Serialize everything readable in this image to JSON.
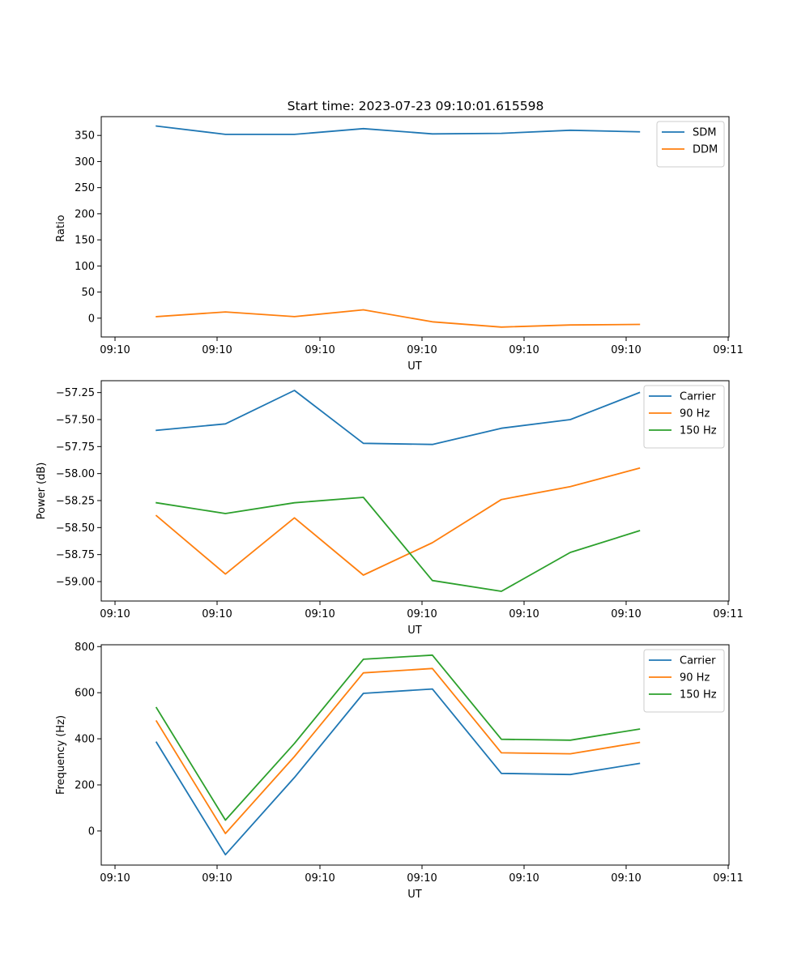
{
  "chart_data": [
    {
      "type": "line",
      "title": "Start time: 2023-07-23 09:10:01.615598",
      "xlabel": "UT",
      "ylabel": "Ratio",
      "x_tick_labels": [
        "09:10",
        "09:10",
        "09:10",
        "09:10",
        "09:10",
        "09:10",
        "09:11"
      ],
      "x": [
        1,
        2,
        3,
        4,
        5,
        6,
        7,
        8
      ],
      "xlim": [
        0.2,
        9.3
      ],
      "ylim": [
        -36,
        386
      ],
      "y_ticks": [
        0,
        50,
        100,
        150,
        200,
        250,
        300,
        350
      ],
      "y_tick_labels": [
        "0",
        "50",
        "100",
        "150",
        "200",
        "250",
        "300",
        "350"
      ],
      "legend_position": "top-right",
      "series": [
        {
          "name": "SDM",
          "color": "#1f77b4",
          "values": [
            368,
            352,
            352,
            363,
            353,
            354,
            360,
            357
          ]
        },
        {
          "name": "DDM",
          "color": "#ff7f0e",
          "values": [
            3,
            12,
            3,
            16,
            -7,
            -17,
            -13,
            -12
          ]
        }
      ]
    },
    {
      "type": "line",
      "title": "",
      "xlabel": "UT",
      "ylabel": "Power (dB)",
      "x_tick_labels": [
        "09:10",
        "09:10",
        "09:10",
        "09:10",
        "09:10",
        "09:10",
        "09:11"
      ],
      "x": [
        1,
        2,
        3,
        4,
        5,
        6,
        7,
        8
      ],
      "xlim": [
        0.2,
        9.3
      ],
      "ylim": [
        -59.18,
        -57.14
      ],
      "y_ticks": [
        -59.0,
        -58.75,
        -58.5,
        -58.25,
        -58.0,
        -57.75,
        -57.5,
        -57.25
      ],
      "y_tick_labels": [
        "−59.00",
        "−58.75",
        "−58.50",
        "−58.25",
        "−58.00",
        "−57.75",
        "−57.50",
        "−57.25"
      ],
      "legend_position": "top-right",
      "series": [
        {
          "name": "Carrier",
          "color": "#1f77b4",
          "values": [
            -57.6,
            -57.54,
            -57.23,
            -57.72,
            -57.73,
            -57.58,
            -57.5,
            -57.25
          ]
        },
        {
          "name": "90 Hz",
          "color": "#ff7f0e",
          "values": [
            -58.39,
            -58.93,
            -58.41,
            -58.94,
            -58.64,
            -58.24,
            -58.12,
            -57.95
          ]
        },
        {
          "name": "150 Hz",
          "color": "#2ca02c",
          "values": [
            -58.27,
            -58.37,
            -58.27,
            -58.22,
            -58.99,
            -59.09,
            -58.73,
            -58.53
          ]
        }
      ]
    },
    {
      "type": "line",
      "title": "",
      "xlabel": "UT",
      "ylabel": "Frequency (Hz)",
      "x_tick_labels": [
        "09:10",
        "09:10",
        "09:10",
        "09:10",
        "09:10",
        "09:10",
        "09:11"
      ],
      "x": [
        1,
        2,
        3,
        4,
        5,
        6,
        7,
        8
      ],
      "xlim": [
        0.2,
        9.3
      ],
      "ylim": [
        -148,
        808
      ],
      "y_ticks": [
        0,
        200,
        400,
        600,
        800
      ],
      "y_tick_labels": [
        "0",
        "200",
        "400",
        "600",
        "800"
      ],
      "legend_position": "top-right",
      "series": [
        {
          "name": "Carrier",
          "color": "#1f77b4",
          "values": [
            385,
            -103,
            232,
            597,
            616,
            250,
            245,
            293
          ]
        },
        {
          "name": "90 Hz",
          "color": "#ff7f0e",
          "values": [
            477,
            -11,
            323,
            686,
            705,
            339,
            335,
            384
          ]
        },
        {
          "name": "150 Hz",
          "color": "#2ca02c",
          "values": [
            535,
            47,
            380,
            745,
            763,
            398,
            394,
            442
          ]
        }
      ]
    }
  ]
}
